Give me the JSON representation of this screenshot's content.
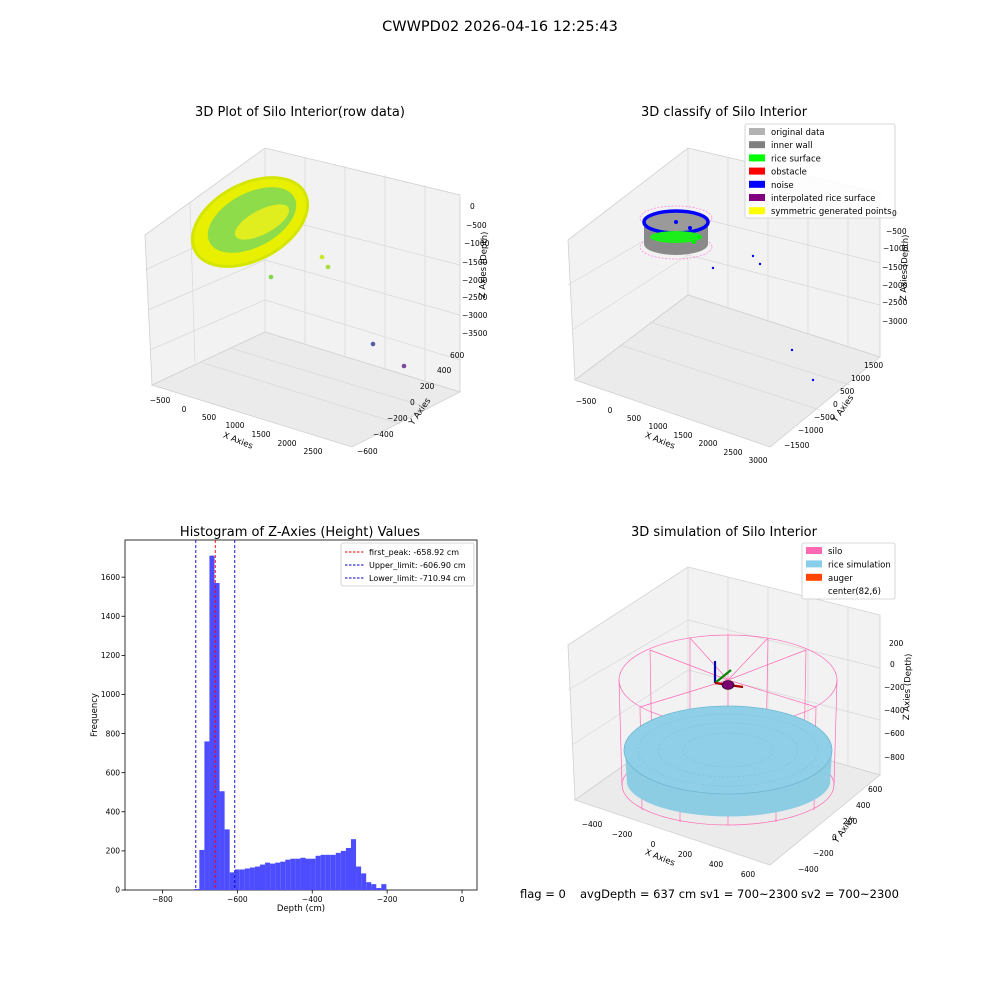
{
  "figure_title": "CWWPD02 2026-04-16 12:25:43",
  "status": {
    "flag": "flag = 0",
    "avg_depth": "avgDepth = 637 cm",
    "sv1": "sv1 = 700~2300",
    "sv2": "sv2 = 700~2300"
  },
  "colors": {
    "hist_bar": "#4d4dff",
    "first_peak": "#ff0000",
    "limit": "#0000cc",
    "pane": "#f2f2f2",
    "grid": "#d9d9d9",
    "silo": "#ff69b4",
    "rice": "#87ceeb",
    "auger": "#ff4500",
    "raw_cloud_outer": "#e8f000",
    "raw_cloud_inner": "#7fd94a"
  },
  "chart_data": [
    {
      "type": "scatter",
      "title": "3D Plot of Silo Interior(row data)",
      "xlabel": "X Axies",
      "ylabel": "Y Axies",
      "zlabel": "Z Axies (Depth)",
      "x_ticks": [
        "−500",
        "0",
        "500",
        "1000",
        "1500",
        "2000",
        "2500"
      ],
      "y_ticks": [
        "600",
        "400",
        "200",
        "0",
        "−200",
        "−400",
        "−600"
      ],
      "z_ticks": [
        "0",
        "−500",
        "−1000",
        "−1500",
        "−2000",
        "−2500",
        "−3000",
        "−3500"
      ],
      "description_points": "dense ring of points near x 0–1000, y −600–600, z 0 to −700; sparse outliers toward x 2500"
    },
    {
      "type": "scatter",
      "title": "3D classify of Silo Interior",
      "xlabel": "X Axies",
      "ylabel": "Y Axies",
      "zlabel": "Z Axies (Depth)",
      "x_ticks": [
        "−500",
        "0",
        "500",
        "1000",
        "1500",
        "2000",
        "2500",
        "3000"
      ],
      "y_ticks": [
        "1500",
        "1000",
        "500",
        "0",
        "−500",
        "−1000",
        "−1500"
      ],
      "z_ticks": [
        "0",
        "−500",
        "−1000",
        "−1500",
        "−2000",
        "−2500",
        "−3000"
      ],
      "legend": [
        {
          "label": "original data",
          "color": "#b3b3b3"
        },
        {
          "label": "inner wall",
          "color": "#808080"
        },
        {
          "label": "rice surface",
          "color": "#00ff00"
        },
        {
          "label": "obstacle",
          "color": "#ff0000"
        },
        {
          "label": "noise",
          "color": "#0000ff"
        },
        {
          "label": "interpolated rice surface",
          "color": "#800080"
        },
        {
          "label": "symmetric generated points",
          "color": "#ffff00"
        }
      ],
      "legend_position": "top-right"
    },
    {
      "type": "bar",
      "title": "Histogram of Z-Axies (Height) Values",
      "xlabel": "Depth (cm)",
      "ylabel": "Frequency",
      "xlim": [
        -900,
        40
      ],
      "ylim": [
        0,
        1790
      ],
      "x_ticks": [
        -800,
        -600,
        -400,
        -200,
        0
      ],
      "x_tick_labels": [
        "−800",
        "−600",
        "−400",
        "−200",
        "0"
      ],
      "y_ticks": [
        0,
        200,
        400,
        600,
        800,
        1000,
        1200,
        1400,
        1600
      ],
      "bin_width": 13.5,
      "bin_start": -715,
      "counts": [
        5,
        205,
        760,
        1710,
        1570,
        505,
        310,
        90,
        105,
        105,
        110,
        115,
        120,
        130,
        140,
        135,
        140,
        145,
        155,
        160,
        160,
        165,
        160,
        160,
        175,
        180,
        180,
        180,
        190,
        200,
        215,
        260,
        120,
        85,
        40,
        30,
        10,
        30
      ],
      "lines": [
        {
          "label": "first_peak: -658.92 cm",
          "x": -658.92,
          "color": "#ff0000"
        },
        {
          "label": "Upper_limit: -606.90 cm",
          "x": -606.9,
          "color": "#0000cc"
        },
        {
          "label": "Lower_limit: -710.94 cm",
          "x": -710.94,
          "color": "#0000cc"
        }
      ],
      "legend_position": "top-right"
    },
    {
      "type": "scatter",
      "title": "3D simulation of Silo Interior",
      "xlabel": "X Axies",
      "ylabel": "Y Axies",
      "zlabel": "Z Axies (Depth)",
      "x_ticks": [
        "−400",
        "−200",
        "0",
        "200",
        "400",
        "600"
      ],
      "y_ticks": [
        "600",
        "400",
        "200",
        "0",
        "−200",
        "−400"
      ],
      "z_ticks": [
        "200",
        "0",
        "−200",
        "−400",
        "−600",
        "−800"
      ],
      "legend": [
        {
          "label": "silo",
          "color": "#ff69b4"
        },
        {
          "label": "rice simulation",
          "color": "#87ceeb"
        },
        {
          "label": "auger",
          "color": "#ff4500"
        },
        {
          "label": "center(82,6)",
          "color": ""
        }
      ],
      "legend_position": "top-right"
    }
  ]
}
